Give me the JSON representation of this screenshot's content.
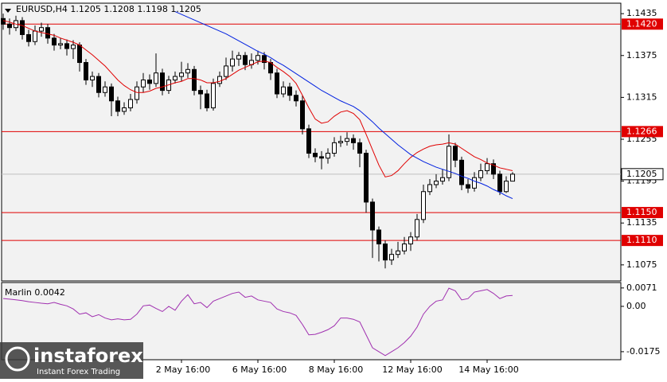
{
  "chart_data": [
    {
      "type": "candlestick",
      "title": "EURUSD,H4  1.1205 1.1208 1.1198 1.1205",
      "categories": [
        null,
        null,
        null,
        null,
        null,
        null,
        null,
        null,
        null,
        null,
        null,
        null,
        null,
        null,
        null,
        null,
        null,
        null,
        null,
        null,
        null,
        null,
        null,
        null,
        null,
        null,
        null,
        null,
        "2 May 16:00",
        null,
        null,
        null,
        null,
        null,
        null,
        null,
        null,
        null,
        null,
        null,
        "6 May 16:00",
        null,
        null,
        null,
        null,
        null,
        null,
        null,
        null,
        null,
        null,
        null,
        "8 May 16:00",
        null,
        null,
        null,
        null,
        null,
        null,
        null,
        null,
        null,
        null,
        null,
        "12 May 16:00",
        null,
        null,
        null,
        null,
        null,
        null,
        null,
        null,
        null,
        null,
        null,
        "14 May 16:00",
        null,
        null,
        null,
        null
      ],
      "open": [
        1.1428,
        1.142,
        1.1415,
        1.1425,
        1.1405,
        1.1395,
        1.141,
        1.1415,
        1.14,
        1.139,
        1.1392,
        1.1385,
        1.139,
        1.1365,
        1.134,
        1.1345,
        1.1322,
        1.133,
        1.131,
        1.1295,
        1.13,
        1.1312,
        1.133,
        1.134,
        1.1335,
        1.135,
        1.1325,
        1.134,
        1.1345,
        1.135,
        1.1355,
        1.1325,
        1.132,
        1.13,
        1.1335,
        1.1345,
        1.136,
        1.137,
        1.1375,
        1.1362,
        1.1368,
        1.1375,
        1.1365,
        1.135,
        1.132,
        1.133,
        1.1318,
        1.131,
        1.127,
        1.1235,
        1.123,
        1.1228,
        1.1235,
        1.125,
        1.1252,
        1.1256,
        1.125,
        1.1235,
        1.1165,
        1.1125,
        1.1105,
        1.1082,
        1.109,
        1.1095,
        1.1105,
        1.1115,
        1.114,
        1.118,
        1.119,
        1.1195,
        1.12,
        1.1245,
        1.1225,
        1.119,
        1.1185,
        1.12,
        1.121,
        1.122,
        1.1205,
        1.118,
        1.1195
      ],
      "high": [
        1.1435,
        1.1428,
        1.1432,
        1.143,
        1.1412,
        1.1418,
        1.1422,
        1.142,
        1.1406,
        1.14,
        1.1398,
        1.1397,
        1.1394,
        1.137,
        1.1352,
        1.135,
        1.1338,
        1.1335,
        1.1316,
        1.1308,
        1.132,
        1.1338,
        1.135,
        1.1348,
        1.1378,
        1.1356,
        1.1346,
        1.1352,
        1.1366,
        1.1364,
        1.136,
        1.1332,
        1.1326,
        1.1342,
        1.1352,
        1.1372,
        1.1382,
        1.138,
        1.138,
        1.1378,
        1.1382,
        1.138,
        1.137,
        1.1356,
        1.1338,
        1.1336,
        1.1325,
        1.1318,
        1.1276,
        1.1242,
        1.1238,
        1.1242,
        1.1258,
        1.126,
        1.1265,
        1.1262,
        1.1256,
        1.124,
        1.117,
        1.113,
        1.111,
        1.1098,
        1.1108,
        1.1115,
        1.1122,
        1.1148,
        1.119,
        1.1198,
        1.1205,
        1.1212,
        1.1262,
        1.125,
        1.123,
        1.1198,
        1.1208,
        1.122,
        1.1228,
        1.1226,
        1.121,
        1.1202,
        1.1208
      ],
      "low": [
        1.1412,
        1.1405,
        1.141,
        1.1398,
        1.1388,
        1.139,
        1.1402,
        1.1392,
        1.1382,
        1.1384,
        1.1375,
        1.137,
        1.1352,
        1.1333,
        1.133,
        1.1315,
        1.1316,
        1.1288,
        1.1288,
        1.129,
        1.1295,
        1.1306,
        1.1322,
        1.1326,
        1.133,
        1.1318,
        1.132,
        1.1335,
        1.1338,
        1.1343,
        1.1318,
        1.1298,
        1.1295,
        1.1296,
        1.133,
        1.134,
        1.1352,
        1.136,
        1.1354,
        1.1356,
        1.1362,
        1.1355,
        1.134,
        1.1314,
        1.1315,
        1.131,
        1.1302,
        1.1262,
        1.1228,
        1.1222,
        1.1212,
        1.122,
        1.123,
        1.1244,
        1.1246,
        1.124,
        1.1215,
        1.115,
        1.1085,
        1.108,
        1.107,
        1.1075,
        1.1085,
        1.109,
        1.1095,
        1.111,
        1.1135,
        1.1175,
        1.1185,
        1.119,
        1.1195,
        1.1215,
        1.1182,
        1.1178,
        1.118,
        1.1195,
        1.1205,
        1.1198,
        1.1175,
        1.1178,
        1.1198
      ],
      "close": [
        1.142,
        1.1415,
        1.1425,
        1.1405,
        1.1395,
        1.141,
        1.1415,
        1.14,
        1.139,
        1.1392,
        1.1385,
        1.139,
        1.1365,
        1.134,
        1.1345,
        1.1322,
        1.133,
        1.131,
        1.1295,
        1.13,
        1.1312,
        1.133,
        1.134,
        1.1335,
        1.135,
        1.1325,
        1.134,
        1.1345,
        1.135,
        1.1355,
        1.1325,
        1.132,
        1.13,
        1.1335,
        1.1345,
        1.136,
        1.137,
        1.1375,
        1.1362,
        1.1368,
        1.1375,
        1.1365,
        1.135,
        1.132,
        1.133,
        1.1318,
        1.131,
        1.127,
        1.1235,
        1.123,
        1.1228,
        1.1235,
        1.125,
        1.1252,
        1.1256,
        1.125,
        1.1235,
        1.1165,
        1.1125,
        1.1105,
        1.1082,
        1.109,
        1.1095,
        1.1105,
        1.1115,
        1.114,
        1.118,
        1.119,
        1.1195,
        1.12,
        1.1245,
        1.1225,
        1.119,
        1.1185,
        1.12,
        1.121,
        1.122,
        1.1205,
        1.118,
        1.1195,
        1.1205
      ],
      "ma_fast": {
        "color": "#e00000",
        "values": [
          1.1425,
          1.1423,
          1.142,
          1.1418,
          1.1414,
          1.141,
          1.1408,
          1.1406,
          1.1404,
          1.14,
          1.1397,
          1.1394,
          1.139,
          1.1383,
          1.1376,
          1.1368,
          1.136,
          1.135,
          1.134,
          1.1332,
          1.1326,
          1.1322,
          1.1322,
          1.1324,
          1.1328,
          1.133,
          1.1333,
          1.1336,
          1.1338,
          1.1342,
          1.1342,
          1.134,
          1.1336,
          1.1336,
          1.1338,
          1.1342,
          1.1348,
          1.1354,
          1.1358,
          1.1362,
          1.1366,
          1.1367,
          1.1365,
          1.1358,
          1.1352,
          1.1345,
          1.1335,
          1.1318,
          1.13,
          1.1284,
          1.1278,
          1.128,
          1.1288,
          1.1294,
          1.1296,
          1.1292,
          1.1283,
          1.1262,
          1.124,
          1.1218,
          1.1201,
          1.1203,
          1.121,
          1.122,
          1.1229,
          1.1236,
          1.1241,
          1.1245,
          1.1247,
          1.1248,
          1.125,
          1.1248,
          1.1242,
          1.1236,
          1.123,
          1.1226,
          1.1221,
          1.1218,
          1.1214,
          1.1212,
          1.121
        ]
      },
      "ma_slow": {
        "color": "#0020e0",
        "values": [
          null,
          null,
          null,
          null,
          null,
          null,
          null,
          null,
          null,
          null,
          null,
          null,
          null,
          null,
          null,
          null,
          null,
          null,
          null,
          null,
          null,
          null,
          null,
          null,
          null,
          null,
          null,
          1.1438,
          1.1434,
          1.143,
          1.1426,
          1.1422,
          1.1418,
          1.1414,
          1.141,
          1.1406,
          1.1401,
          1.1396,
          1.1391,
          1.1386,
          1.1381,
          1.1377,
          1.1372,
          1.1366,
          1.1361,
          1.1355,
          1.1349,
          1.1343,
          1.1337,
          1.1331,
          1.1325,
          1.132,
          1.1315,
          1.131,
          1.1306,
          1.1302,
          1.1296,
          1.1288,
          1.128,
          1.1271,
          1.1263,
          1.1255,
          1.1247,
          1.124,
          1.1233,
          1.1228,
          1.1223,
          1.1219,
          1.1215,
          1.1212,
          1.1209,
          1.1206,
          1.1202,
          1.1199,
          1.1195,
          1.1192,
          1.1188,
          1.1183,
          1.1179,
          1.1174,
          1.117
        ]
      },
      "levels": [
        {
          "value": 1.142,
          "label": "1.1420"
        },
        {
          "value": 1.1266,
          "label": "1.1266"
        },
        {
          "value": 1.115,
          "label": "1.1150"
        },
        {
          "value": 1.111,
          "label": "1.1110"
        }
      ],
      "level_color": "#e00000",
      "current_price": 1.1205,
      "ylim": [
        1.1052,
        1.145
      ],
      "yticks": [
        1.1435,
        1.1375,
        1.1315,
        1.1255,
        1.1195,
        1.1135,
        1.1075
      ]
    },
    {
      "type": "line",
      "name": "Marlin",
      "last_value": 0.0042,
      "color": "#a030b0",
      "values": [
        0.003,
        0.0028,
        0.0025,
        0.0022,
        0.0018,
        0.0015,
        0.0012,
        0.001,
        0.0015,
        0.0008,
        0.0002,
        -0.001,
        -0.003,
        -0.0025,
        -0.004,
        -0.0032,
        -0.0045,
        -0.0052,
        -0.0048,
        -0.0052,
        -0.005,
        -0.003,
        0.0002,
        0.0005,
        -0.0008,
        -0.002,
        0.0,
        -0.0015,
        0.002,
        0.0045,
        0.001,
        0.0015,
        -0.0005,
        0.002,
        0.003,
        0.004,
        0.005,
        0.0055,
        0.0035,
        0.004,
        0.0025,
        0.002,
        0.0015,
        -0.001,
        -0.002,
        -0.0025,
        -0.0035,
        -0.007,
        -0.011,
        -0.0108,
        -0.01,
        -0.009,
        -0.0075,
        -0.0045,
        -0.0045,
        -0.005,
        -0.006,
        -0.011,
        -0.016,
        -0.0175,
        -0.019,
        -0.0175,
        -0.016,
        -0.014,
        -0.0115,
        -0.008,
        -0.003,
        0.0,
        0.002,
        0.0025,
        0.007,
        0.006,
        0.0025,
        0.003,
        0.0055,
        0.006,
        0.0065,
        0.005,
        0.003,
        0.004,
        0.0042
      ],
      "ylim": [
        -0.0206,
        0.0092
      ],
      "yticks": [
        0.0071,
        {
          "value": 0,
          "label": "0.00"
        },
        -0.0175
      ]
    }
  ],
  "watermark": {
    "brand": "instaforex",
    "slogan": "Instant Forex Trading"
  }
}
